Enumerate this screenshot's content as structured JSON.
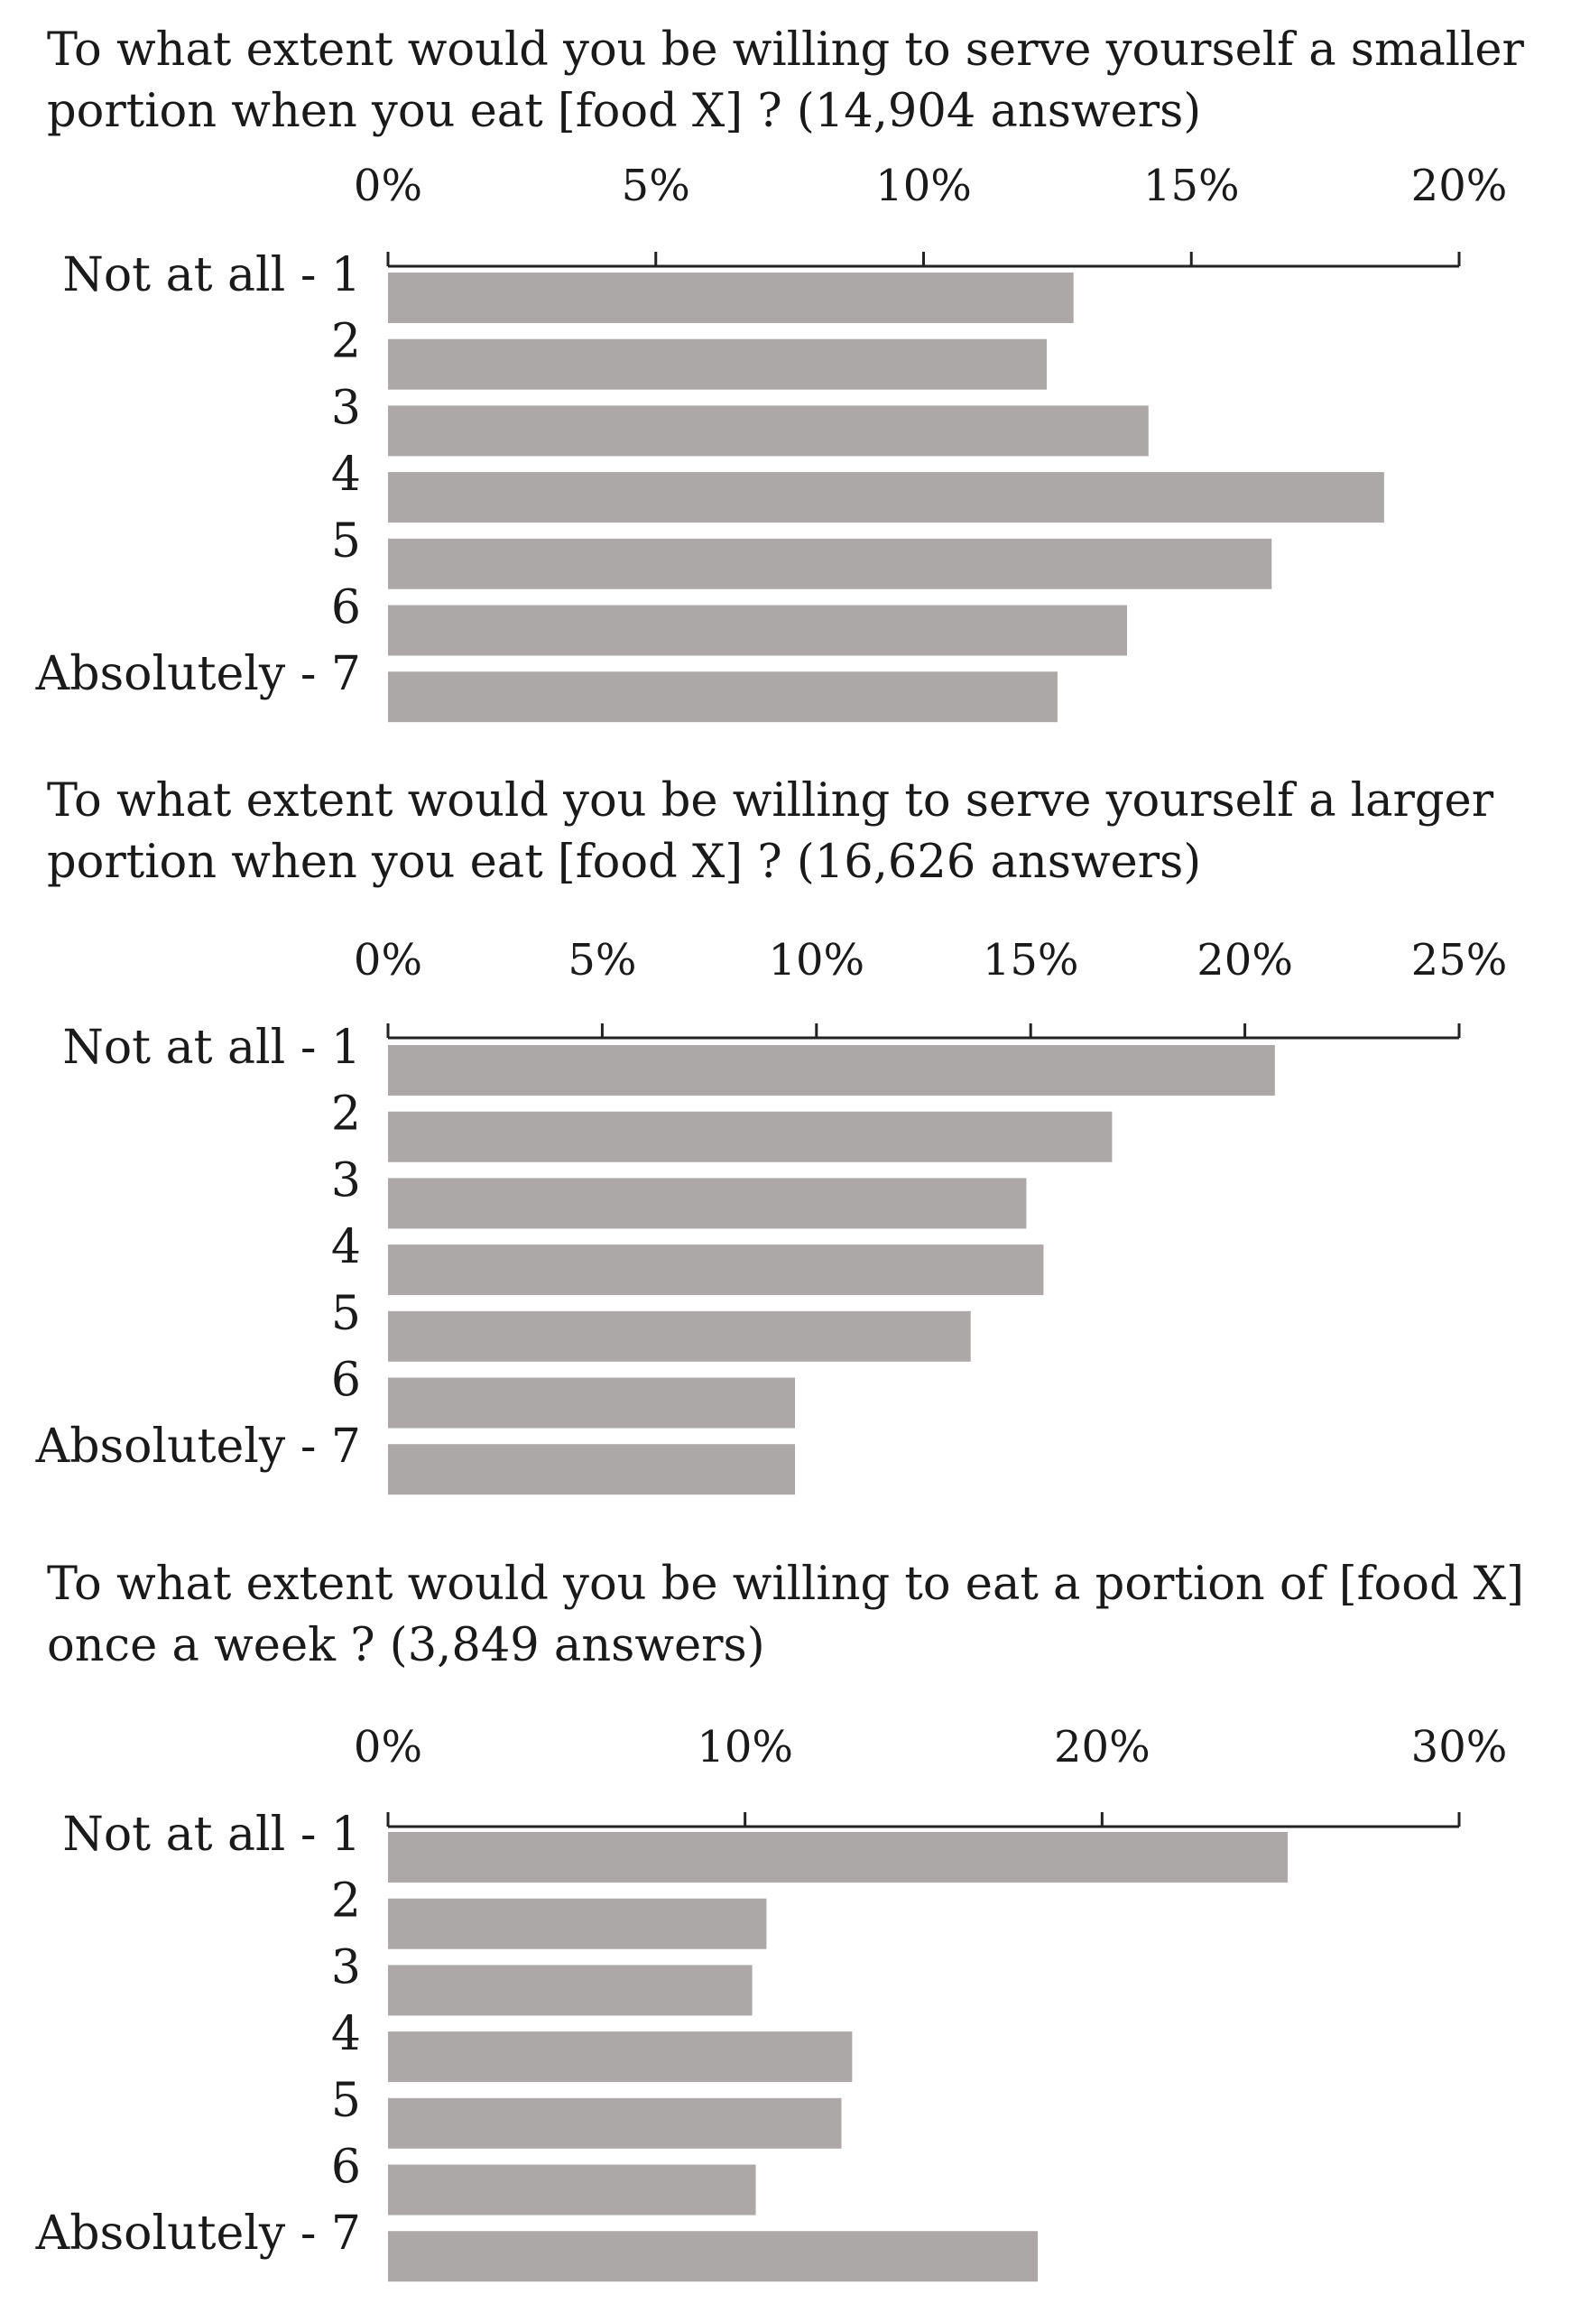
{
  "chart_data": [
    {
      "type": "bar",
      "orientation": "horizontal",
      "title_lines": [
        "To what extent would you be willing to serve yourself a smaller",
        "portion when you eat [food X] ? (14,904 answers)"
      ],
      "categories": [
        "Not at all - 1",
        "2",
        "3",
        "4",
        "5",
        "6",
        "Absolutely - 7"
      ],
      "values": [
        12.8,
        12.3,
        14.2,
        18.6,
        16.5,
        13.8,
        12.5
      ],
      "xlim": [
        0,
        20
      ],
      "xticks": [
        0,
        5,
        10,
        15,
        20
      ],
      "xtick_labels": [
        "0%",
        "5%",
        "10%",
        "15%",
        "20%"
      ],
      "axis_position": "top",
      "bar_color": "#aca8a7"
    },
    {
      "type": "bar",
      "orientation": "horizontal",
      "title_lines": [
        "To what extent would you be willing to serve yourself a larger",
        "portion when you eat [food X] ? (16,626 answers)"
      ],
      "categories": [
        "Not at all - 1",
        "2",
        "3",
        "4",
        "5",
        "6",
        "Absolutely - 7"
      ],
      "values": [
        20.7,
        16.9,
        14.9,
        15.3,
        13.6,
        9.5,
        9.5
      ],
      "xlim": [
        0,
        25
      ],
      "xticks": [
        0,
        5,
        10,
        15,
        20,
        25
      ],
      "xtick_labels": [
        "0%",
        "5%",
        "10%",
        "15%",
        "20%",
        "25%"
      ],
      "axis_position": "top",
      "bar_color": "#aca8a7"
    },
    {
      "type": "bar",
      "orientation": "horizontal",
      "title_lines": [
        "To what extent would you be willing to eat a portion of [food X]",
        "once a week ? (3,849 answers)"
      ],
      "categories": [
        "Not at all - 1",
        "2",
        "3",
        "4",
        "5",
        "6",
        "Absolutely - 7"
      ],
      "values": [
        25.2,
        10.6,
        10.2,
        13.0,
        12.7,
        10.3,
        18.2
      ],
      "xlim": [
        0,
        30
      ],
      "xticks": [
        0,
        10,
        20,
        30
      ],
      "xtick_labels": [
        "0%",
        "10%",
        "20%",
        "30%"
      ],
      "axis_position": "top",
      "bar_color": "#aca8a7"
    }
  ]
}
